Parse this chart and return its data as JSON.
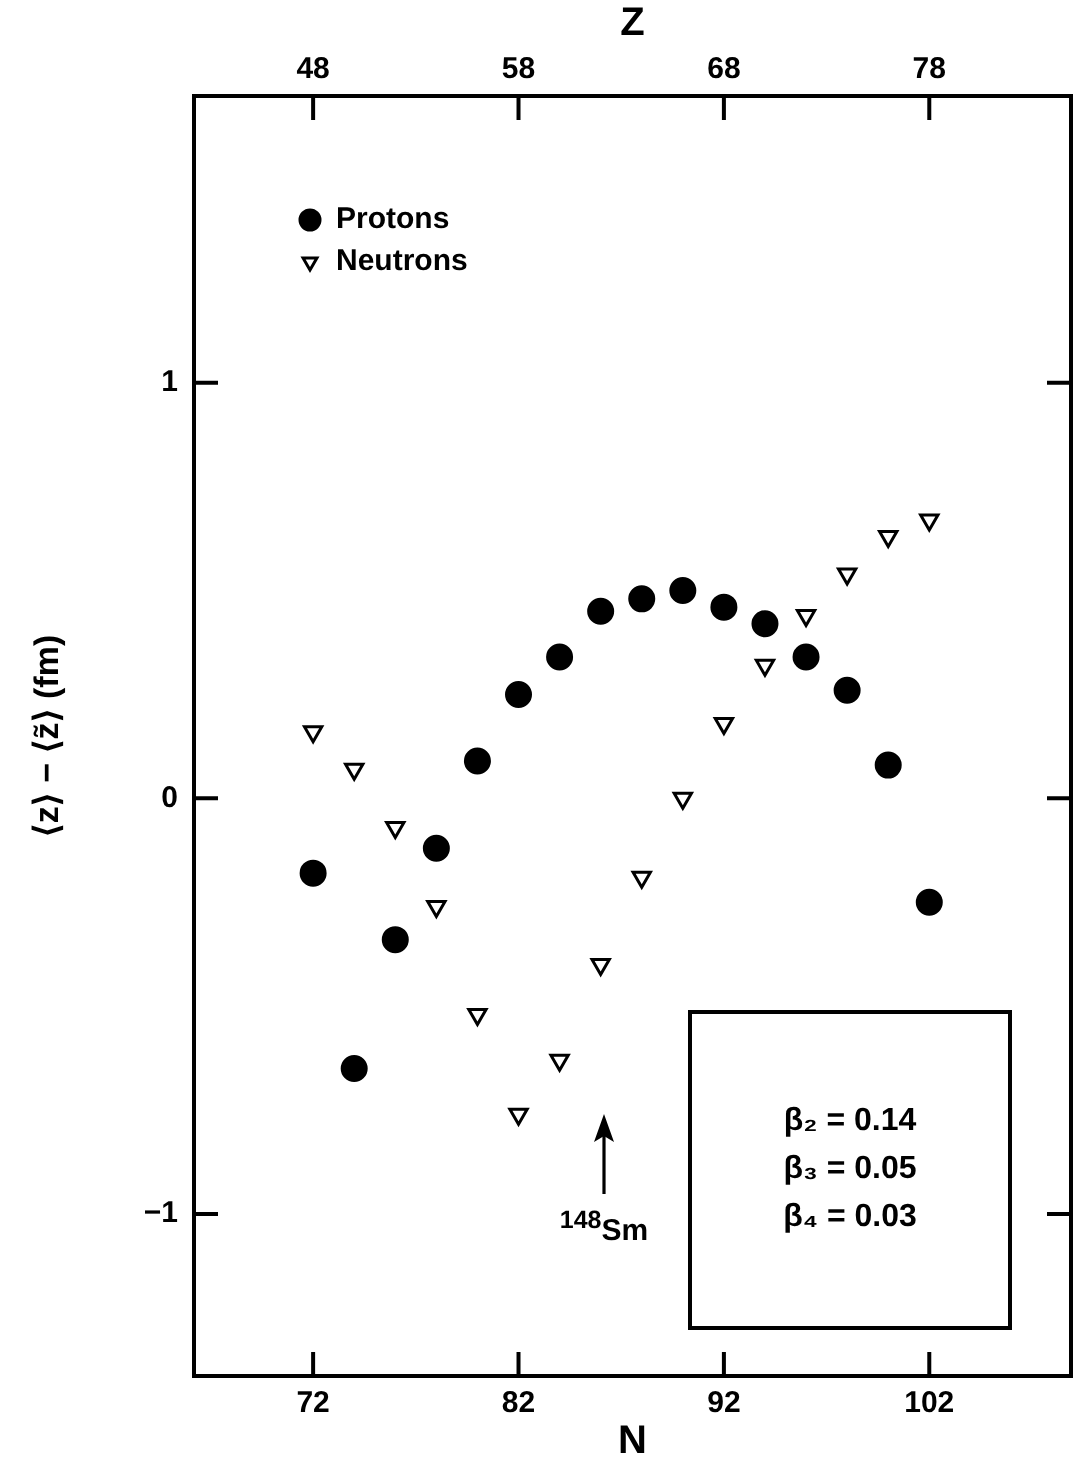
{
  "chart_data": {
    "type": "scatter",
    "xlabel": "N",
    "x2label": "Z",
    "ylabel": "⟨z⟩ − ⟨z̃⟩ (fm)",
    "xlim": [
      66.2,
      108.9
    ],
    "xticks": [
      72,
      82,
      92,
      102
    ],
    "x2lim": [
      42.2,
      84.9
    ],
    "x2ticks": [
      48,
      58,
      68,
      78
    ],
    "ylim": [
      -1.39,
      1.69
    ],
    "yticks": [
      1,
      0,
      {
        "value": -1,
        "label": "−1"
      }
    ],
    "grid": false,
    "legend": "top left",
    "series": [
      {
        "name": "Protons",
        "color": "#000000",
        "marker": "circle",
        "x": [
          72,
          74,
          76,
          78,
          80,
          82,
          84,
          86,
          88,
          90,
          92,
          94,
          96,
          98,
          100,
          102
        ],
        "values": [
          -0.18,
          -0.65,
          -0.34,
          -0.12,
          0.09,
          0.25,
          0.34,
          0.45,
          0.48,
          0.5,
          0.46,
          0.42,
          0.34,
          0.26,
          0.08,
          -0.25
        ]
      },
      {
        "name": "Neutrons",
        "color": "#000000",
        "marker": "triangle",
        "x": [
          72,
          74,
          76,
          78,
          80,
          82,
          84,
          86,
          88,
          90,
          92,
          94,
          96,
          98,
          100,
          102
        ],
        "values": [
          0.16,
          0.07,
          -0.07,
          -0.26,
          -0.52,
          -0.76,
          -0.63,
          -0.4,
          -0.19,
          0.0,
          0.18,
          0.32,
          0.44,
          0.54,
          0.63,
          0.67
        ]
      }
    ],
    "annotations": [
      "$^{148}$Sm",
      "β₂ = 0.14",
      "β₃ = 0.05",
      "β₄ = 0.03"
    ]
  }
}
